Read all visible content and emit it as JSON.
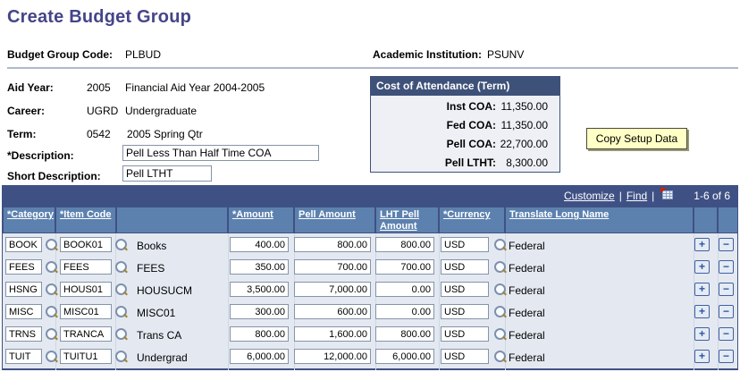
{
  "page": {
    "title": "Create Budget Group"
  },
  "header_fields": {
    "budget_group_code": {
      "label": "Budget Group Code:",
      "value": "PLBUD"
    },
    "academic_institution": {
      "label": "Academic Institution:",
      "value": "PSUNV"
    }
  },
  "fields": {
    "aid_year": {
      "label": "Aid Year:",
      "code": "2005",
      "desc": "Financial Aid Year 2004-2005"
    },
    "career": {
      "label": "Career:",
      "code": "UGRD",
      "desc": "Undergraduate"
    },
    "term": {
      "label": "Term:",
      "code": "0542",
      "desc": "2005 Spring Qtr"
    },
    "description": {
      "label": "*Description:",
      "value": "Pell Less Than Half Time COA"
    },
    "short_description": {
      "label": "Short Description:",
      "value": "Pell LTHT"
    }
  },
  "coa_box": {
    "title": "Cost of Attendance (Term)",
    "rows": [
      {
        "label": "Inst COA:",
        "value": "11,350.00"
      },
      {
        "label": "Fed COA:",
        "value": "11,350.00"
      },
      {
        "label": "Pell COA:",
        "value": "22,700.00"
      },
      {
        "label": "Pell LTHT:",
        "value": "8,300.00"
      }
    ]
  },
  "buttons": {
    "copy_setup_data": "Copy Setup Data"
  },
  "grid": {
    "toolbar": {
      "customize": "Customize",
      "find": "Find",
      "pipe": "|",
      "range": "1-6 of 6",
      "download_icon": "download-grid-icon"
    },
    "columns": [
      "*Category",
      "*Item Code",
      "*Amount",
      "Pell Amount",
      "LHT Pell Amount",
      "*Currency",
      "Translate Long Name"
    ],
    "add_symbol": "+",
    "remove_symbol": "−",
    "rows": [
      {
        "category": "BOOK",
        "item_code": "BOOK01",
        "desc": "Books",
        "amount": "400.00",
        "pell": "800.00",
        "lht": "800.00",
        "currency": "USD",
        "name": "Federal"
      },
      {
        "category": "FEES",
        "item_code": "FEES",
        "desc": "FEES",
        "amount": "350.00",
        "pell": "700.00",
        "lht": "700.00",
        "currency": "USD",
        "name": "Federal"
      },
      {
        "category": "HSNG",
        "item_code": "HOUS01",
        "desc": "HOUSUCM",
        "amount": "3,500.00",
        "pell": "7,000.00",
        "lht": "0.00",
        "currency": "USD",
        "name": "Federal"
      },
      {
        "category": "MISC",
        "item_code": "MISC01",
        "desc": "MISC01",
        "amount": "300.00",
        "pell": "600.00",
        "lht": "0.00",
        "currency": "USD",
        "name": "Federal"
      },
      {
        "category": "TRNS",
        "item_code": "TRANCA",
        "desc": "Trans CA",
        "amount": "800.00",
        "pell": "1,600.00",
        "lht": "800.00",
        "currency": "USD",
        "name": "Federal"
      },
      {
        "category": "TUIT",
        "item_code": "TUITU1",
        "desc": "Undergrad",
        "amount": "6,000.00",
        "pell": "12,000.00",
        "lht": "6,000.00",
        "currency": "USD",
        "name": "Federal"
      }
    ]
  }
}
